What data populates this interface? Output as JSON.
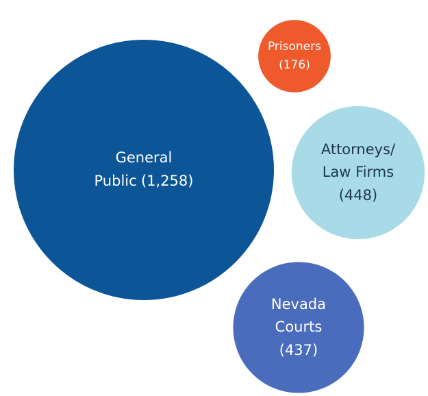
{
  "chart_data": {
    "type": "bubble",
    "categories": [
      "General\nPublic",
      "Prisoners",
      "Attorneys/\nLaw Firms",
      "Nevada\nCourts"
    ],
    "values": [
      1258,
      176,
      448,
      437
    ],
    "value_labels": [
      "(1,258)",
      "(176)",
      "(448)",
      "(437)"
    ],
    "colors": [
      "#0c5597",
      "#ef5a2c",
      "#a8dbe7",
      "#4a6cbc"
    ]
  }
}
